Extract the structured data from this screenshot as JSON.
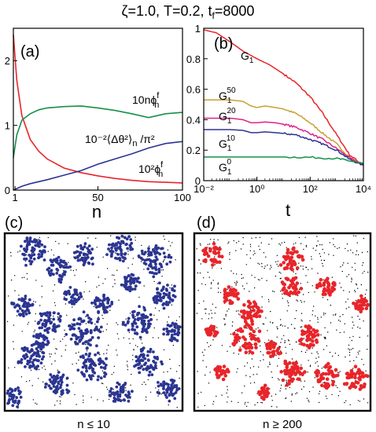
{
  "figure": {
    "title": "ζ=1.0, T=0.2, t",
    "title_sub": "f",
    "title_tail": "=8000"
  },
  "chart_data": [
    {
      "panel": "(a)",
      "type": "line",
      "xlabel": "n",
      "xlim": [
        0,
        100
      ],
      "ylim": [
        0,
        2.5
      ],
      "xticks": [
        1,
        50,
        100
      ],
      "yticks": [
        0,
        1,
        2
      ],
      "grid": false,
      "annotations": [
        {
          "text": "10nϕ",
          "sup": "f",
          "sub": "n"
        },
        {
          "text": "10⁻²⟨Δθ²⟩",
          "sub": "n",
          "tail": " /π²"
        },
        {
          "text": "10²ϕ",
          "sup": "f",
          "sub": "n"
        }
      ],
      "series": [
        {
          "color": "#e8252a",
          "x": [
            0,
            2,
            5,
            10,
            15,
            20,
            30,
            40,
            50,
            60,
            70,
            80,
            90,
            100
          ],
          "y": [
            2.4,
            1.7,
            1.15,
            0.78,
            0.6,
            0.48,
            0.34,
            0.27,
            0.22,
            0.18,
            0.15,
            0.13,
            0.12,
            0.11
          ]
        },
        {
          "color": "#159048",
          "x": [
            0,
            2,
            5,
            10,
            15,
            20,
            30,
            40,
            50,
            60,
            70,
            80,
            90,
            100
          ],
          "y": [
            0.5,
            0.85,
            1.08,
            1.18,
            1.24,
            1.27,
            1.29,
            1.3,
            1.27,
            1.23,
            1.18,
            1.12,
            1.18,
            1.2
          ]
        },
        {
          "color": "#2b3591",
          "x": [
            0,
            5,
            10,
            20,
            30,
            40,
            50,
            60,
            70,
            80,
            90,
            100
          ],
          "y": [
            0.0,
            0.06,
            0.1,
            0.16,
            0.23,
            0.3,
            0.4,
            0.48,
            0.56,
            0.65,
            0.72,
            0.75
          ]
        }
      ]
    },
    {
      "panel": "(b)",
      "type": "line",
      "xlabel": "t",
      "xscale": "log",
      "xlim": [
        0.01,
        10000
      ],
      "ylim": [
        0,
        1
      ],
      "xticks": [
        "10⁻²",
        "10⁰",
        "10²",
        "10⁴"
      ],
      "yticks": [
        0,
        0.2,
        0.4,
        0.6,
        0.8,
        1
      ],
      "grid": false,
      "series": [
        {
          "name": "G",
          "name_sub": "1",
          "name_sup": "",
          "color": "#e8252a",
          "x": [
            0.01,
            0.03,
            0.1,
            0.3,
            1,
            3,
            10,
            30,
            100,
            300,
            1000,
            3000,
            10000
          ],
          "y": [
            0.99,
            0.97,
            0.91,
            0.85,
            0.8,
            0.76,
            0.7,
            0.64,
            0.55,
            0.44,
            0.3,
            0.17,
            0.1
          ]
        },
        {
          "name": "G",
          "name_sub": "1",
          "name_sup": "50",
          "color": "#c9a030",
          "x": [
            0.01,
            0.1,
            0.3,
            0.6,
            1,
            2,
            5,
            10,
            30,
            100,
            300,
            1000,
            3000,
            10000
          ],
          "y": [
            0.53,
            0.53,
            0.52,
            0.49,
            0.48,
            0.49,
            0.48,
            0.47,
            0.44,
            0.38,
            0.31,
            0.24,
            0.15,
            0.1
          ]
        },
        {
          "name": "G",
          "name_sub": "1",
          "name_sup": "20",
          "color": "#e0218a",
          "x": [
            0.01,
            0.1,
            0.3,
            0.6,
            1,
            2,
            5,
            10,
            30,
            100,
            300,
            1000,
            3000,
            10000
          ],
          "y": [
            0.41,
            0.41,
            0.4,
            0.38,
            0.38,
            0.385,
            0.38,
            0.37,
            0.35,
            0.31,
            0.27,
            0.21,
            0.15,
            0.1
          ]
        },
        {
          "name": "G",
          "name_sub": "1",
          "name_sup": "10",
          "color": "#2b3591",
          "x": [
            0.01,
            0.1,
            0.3,
            0.6,
            1,
            2,
            5,
            10,
            30,
            100,
            300,
            1000,
            3000,
            10000
          ],
          "y": [
            0.335,
            0.335,
            0.33,
            0.315,
            0.315,
            0.32,
            0.315,
            0.31,
            0.3,
            0.27,
            0.24,
            0.2,
            0.14,
            0.1
          ]
        },
        {
          "name": "G",
          "name_sub": "1",
          "name_sup": "0",
          "color": "#159048",
          "x": [
            0.01,
            0.1,
            1,
            10,
            100,
            1000,
            3000,
            10000
          ],
          "y": [
            0.155,
            0.155,
            0.155,
            0.155,
            0.153,
            0.145,
            0.13,
            0.11
          ]
        }
      ]
    },
    {
      "panel": "(c)",
      "type": "scatter",
      "caption": "n ≤ 10",
      "highlight_color": "#2b3591"
    },
    {
      "panel": "(d)",
      "type": "scatter",
      "caption": "n ≥ 200",
      "highlight_color": "#e8252a"
    }
  ]
}
